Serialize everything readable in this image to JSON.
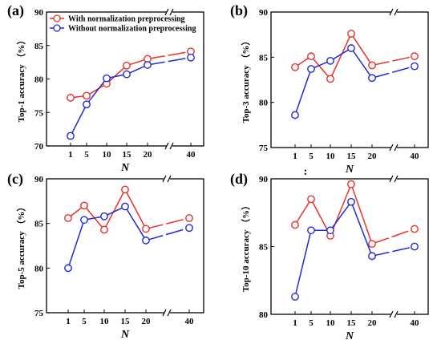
{
  "stray_mark": ":",
  "chart_data": [
    {
      "type": "line",
      "panel_label": "(a)",
      "ylabel": "Top-1 accuracy （%）",
      "xlabel": "N",
      "ylim": [
        70,
        90
      ],
      "yticks": [
        "70",
        "75",
        "80",
        "85",
        "90"
      ],
      "categories": [
        "1",
        "5",
        "10",
        "15",
        "20",
        "40"
      ],
      "axis_break": true,
      "legend": {
        "placement": "top-left"
      },
      "series": [
        {
          "name": "With normalization preprocessing",
          "color": "#e8322a",
          "values": [
            77.2,
            77.5,
            79.3,
            82.0,
            83.0,
            84.1
          ]
        },
        {
          "name": "Without normalization preprocessing",
          "color": "#1f2bd6",
          "values": [
            71.5,
            76.2,
            80.1,
            80.7,
            82.1,
            83.2
          ]
        }
      ]
    },
    {
      "type": "line",
      "panel_label": "(b)",
      "ylabel": "Top-3 accuracy （%）",
      "xlabel": "N",
      "ylim": [
        75,
        90
      ],
      "yticks": [
        "75",
        "80",
        "85",
        "90"
      ],
      "categories": [
        "1",
        "5",
        "10",
        "15",
        "20",
        "40"
      ],
      "axis_break": true,
      "series": [
        {
          "color": "#e8322a",
          "values": [
            83.9,
            85.1,
            82.6,
            87.6,
            84.1,
            85.1
          ]
        },
        {
          "color": "#1f2bd6",
          "values": [
            78.6,
            83.7,
            84.6,
            86.0,
            82.7,
            84.0
          ]
        }
      ]
    },
    {
      "type": "line",
      "panel_label": "(c)",
      "ylabel": "Top-5 accuracy （%）",
      "xlabel": "N",
      "ylim": [
        75,
        90
      ],
      "yticks": [
        "75",
        "80",
        "85",
        "90"
      ],
      "categories": [
        "1",
        "5",
        "10",
        "15",
        "20",
        "40"
      ],
      "axis_break": true,
      "series": [
        {
          "color": "#e8322a",
          "values": [
            85.6,
            87.0,
            84.3,
            88.8,
            84.4,
            85.6
          ]
        },
        {
          "color": "#1f2bd6",
          "values": [
            80.0,
            85.4,
            85.8,
            86.9,
            83.1,
            84.5
          ]
        }
      ]
    },
    {
      "type": "line",
      "panel_label": "(d)",
      "ylabel": "Top-10 accuracy （%）",
      "xlabel": "N",
      "ylim": [
        80,
        90
      ],
      "yticks": [
        "80",
        "85",
        "90"
      ],
      "categories": [
        "1",
        "5",
        "10",
        "15",
        "20",
        "40"
      ],
      "axis_break": true,
      "series": [
        {
          "color": "#e8322a",
          "values": [
            86.6,
            88.5,
            85.8,
            89.6,
            85.2,
            86.3
          ]
        },
        {
          "color": "#1f2bd6",
          "values": [
            81.3,
            86.2,
            86.2,
            88.3,
            84.3,
            85.0
          ]
        }
      ]
    }
  ]
}
